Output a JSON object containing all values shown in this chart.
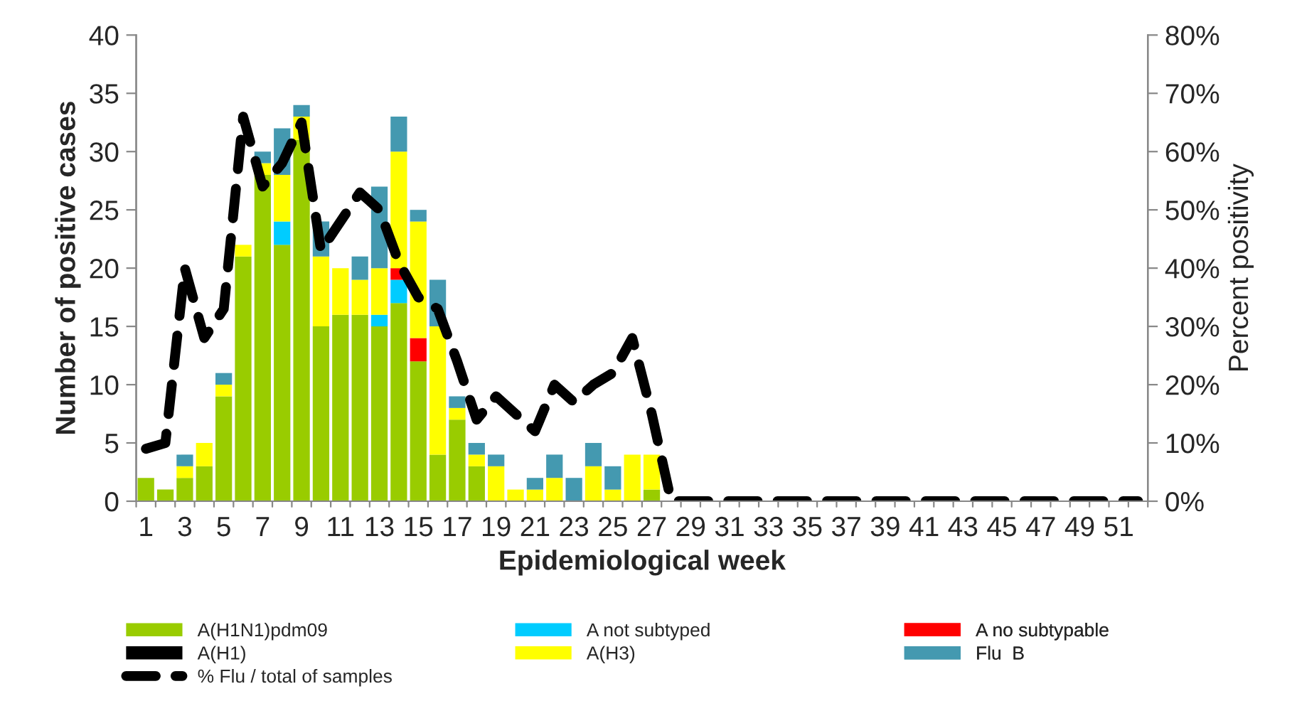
{
  "chart_data": {
    "type": "bar",
    "stacked": true,
    "xlabel": "Epidemiological week",
    "ylabel": "Number of positive cases",
    "y2label": "Percent positivity",
    "categories": [
      "1",
      null,
      "3",
      null,
      "5",
      null,
      "7",
      null,
      "9",
      null,
      "11",
      null,
      "13",
      null,
      "15",
      null,
      "17",
      null,
      "19",
      null,
      "21",
      null,
      "23",
      null,
      "25",
      null,
      "27",
      null,
      "29",
      null,
      "31",
      null,
      "33",
      null,
      "35",
      null,
      "37",
      null,
      "39",
      null,
      "41",
      null,
      "43",
      null,
      "45",
      null,
      "47",
      null,
      "49",
      null,
      "51",
      null
    ],
    "series": [
      {
        "name": "A(H1N1)pdm09",
        "color": "#99cc00",
        "values": [
          2,
          1,
          2,
          3,
          9,
          21,
          28,
          22,
          31,
          15,
          16,
          16,
          15,
          17,
          12,
          4,
          7,
          3,
          0,
          0,
          0,
          0,
          0,
          0,
          0,
          0,
          1,
          0,
          0,
          0,
          0,
          0,
          0,
          0,
          0,
          0,
          0,
          0,
          0,
          0,
          0,
          0,
          0,
          0,
          0,
          0,
          0,
          0,
          0,
          0,
          0,
          0
        ]
      },
      {
        "name": "A not subtyped",
        "color": "#00ccff",
        "values": [
          0,
          0,
          0,
          0,
          0,
          0,
          0,
          2,
          0,
          0,
          0,
          0,
          1,
          2,
          0,
          0,
          0,
          0,
          0,
          0,
          0,
          0,
          0,
          0,
          0,
          0,
          0,
          0,
          0,
          0,
          0,
          0,
          0,
          0,
          0,
          0,
          0,
          0,
          0,
          0,
          0,
          0,
          0,
          0,
          0,
          0,
          0,
          0,
          0,
          0,
          0,
          0
        ]
      },
      {
        "name": "A no subtypable",
        "color": "#ff0000",
        "values": [
          0,
          0,
          0,
          0,
          0,
          0,
          0,
          0,
          0,
          0,
          0,
          0,
          0,
          1,
          2,
          0,
          0,
          0,
          0,
          0,
          0,
          0,
          0,
          0,
          0,
          0,
          0,
          0,
          0,
          0,
          0,
          0,
          0,
          0,
          0,
          0,
          0,
          0,
          0,
          0,
          0,
          0,
          0,
          0,
          0,
          0,
          0,
          0,
          0,
          0,
          0,
          0
        ]
      },
      {
        "name": "A(H1)",
        "color": "#000000",
        "values": [
          0,
          0,
          0,
          0,
          0,
          0,
          0,
          0,
          0,
          0,
          0,
          0,
          0,
          0,
          0,
          0,
          0,
          0,
          0,
          0,
          0,
          0,
          0,
          0,
          0,
          0,
          0,
          0,
          0,
          0,
          0,
          0,
          0,
          0,
          0,
          0,
          0,
          0,
          0,
          0,
          0,
          0,
          0,
          0,
          0,
          0,
          0,
          0,
          0,
          0,
          0,
          0
        ]
      },
      {
        "name": "A(H3)",
        "color": "#ffff00",
        "values": [
          0,
          0,
          1,
          2,
          1,
          1,
          1,
          4,
          2,
          6,
          4,
          3,
          4,
          10,
          10,
          11,
          1,
          1,
          3,
          1,
          1,
          2,
          0,
          3,
          1,
          4,
          3,
          0,
          0,
          0,
          0,
          0,
          0,
          0,
          0,
          0,
          0,
          0,
          0,
          0,
          0,
          0,
          0,
          0,
          0,
          0,
          0,
          0,
          0,
          0,
          0,
          0
        ]
      },
      {
        "name": "Flu  B",
        "color": "#4499b0",
        "values": [
          0,
          0,
          1,
          0,
          1,
          0,
          1,
          4,
          1,
          3,
          0,
          2,
          7,
          3,
          1,
          4,
          1,
          1,
          1,
          0,
          1,
          2,
          2,
          2,
          2,
          0,
          0,
          0,
          0,
          0,
          0,
          0,
          0,
          0,
          0,
          0,
          0,
          0,
          0,
          0,
          0,
          0,
          0,
          0,
          0,
          0,
          0,
          0,
          0,
          0,
          0,
          0
        ]
      },
      {
        "name": "% Flu / total of samples",
        "type": "line",
        "axis": "y2",
        "color": "#000000",
        "line_style": "dashed",
        "values": [
          9,
          10,
          40,
          28,
          33,
          66,
          54,
          58,
          65,
          43,
          48,
          53,
          50,
          41,
          35,
          33,
          24,
          14,
          18,
          15,
          12,
          20,
          17,
          20,
          22,
          28,
          15,
          0,
          0,
          0,
          0,
          0,
          0,
          0,
          0,
          0,
          0,
          0,
          0,
          0,
          0,
          0,
          0,
          0,
          0,
          0,
          0,
          0,
          0,
          0,
          0,
          0
        ]
      }
    ],
    "ylim": [
      0,
      40
    ],
    "yticks": [
      0,
      5,
      10,
      15,
      20,
      25,
      30,
      35,
      40
    ],
    "y2lim": [
      0,
      80
    ],
    "y2ticks": [
      {
        "value": 0,
        "label": "0%"
      },
      {
        "value": 10,
        "label": "10%"
      },
      {
        "value": 20,
        "label": "20%"
      },
      {
        "value": 30,
        "label": "30%"
      },
      {
        "value": 40,
        "label": "40%"
      },
      {
        "value": 50,
        "label": "50%"
      },
      {
        "value": 60,
        "label": "60%"
      },
      {
        "value": 70,
        "label": "70%"
      },
      {
        "value": 80,
        "label": "80%"
      }
    ],
    "grid": false,
    "legend": "bottom"
  }
}
